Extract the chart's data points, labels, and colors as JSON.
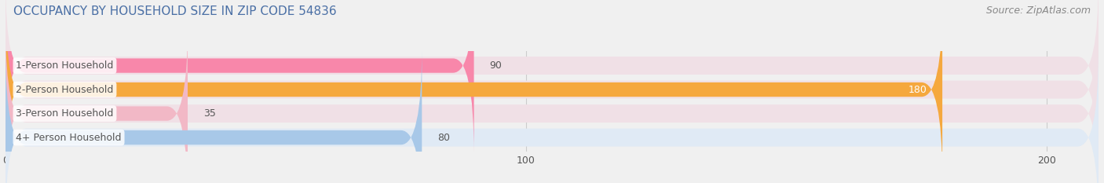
{
  "title": "OCCUPANCY BY HOUSEHOLD SIZE IN ZIP CODE 54836",
  "source": "Source: ZipAtlas.com",
  "categories": [
    "1-Person Household",
    "2-Person Household",
    "3-Person Household",
    "4+ Person Household"
  ],
  "values": [
    90,
    180,
    35,
    80
  ],
  "bar_colors": [
    "#f887aa",
    "#f5a83e",
    "#f2b8c6",
    "#a8c8e8"
  ],
  "bar_bg_colors": [
    "#f0e0e6",
    "#f0e0e6",
    "#f0e0e6",
    "#e0eaf5"
  ],
  "value_label_colors": [
    "#666666",
    "#ffffff",
    "#666666",
    "#666666"
  ],
  "xlim_max": 210,
  "xticks": [
    0,
    100,
    200
  ],
  "background_color": "#f0f0f0",
  "title_color": "#4a6fa5",
  "source_color": "#888888",
  "label_text_color": "#555555",
  "title_fontsize": 11,
  "source_fontsize": 9,
  "bar_label_fontsize": 9,
  "value_fontsize": 9
}
